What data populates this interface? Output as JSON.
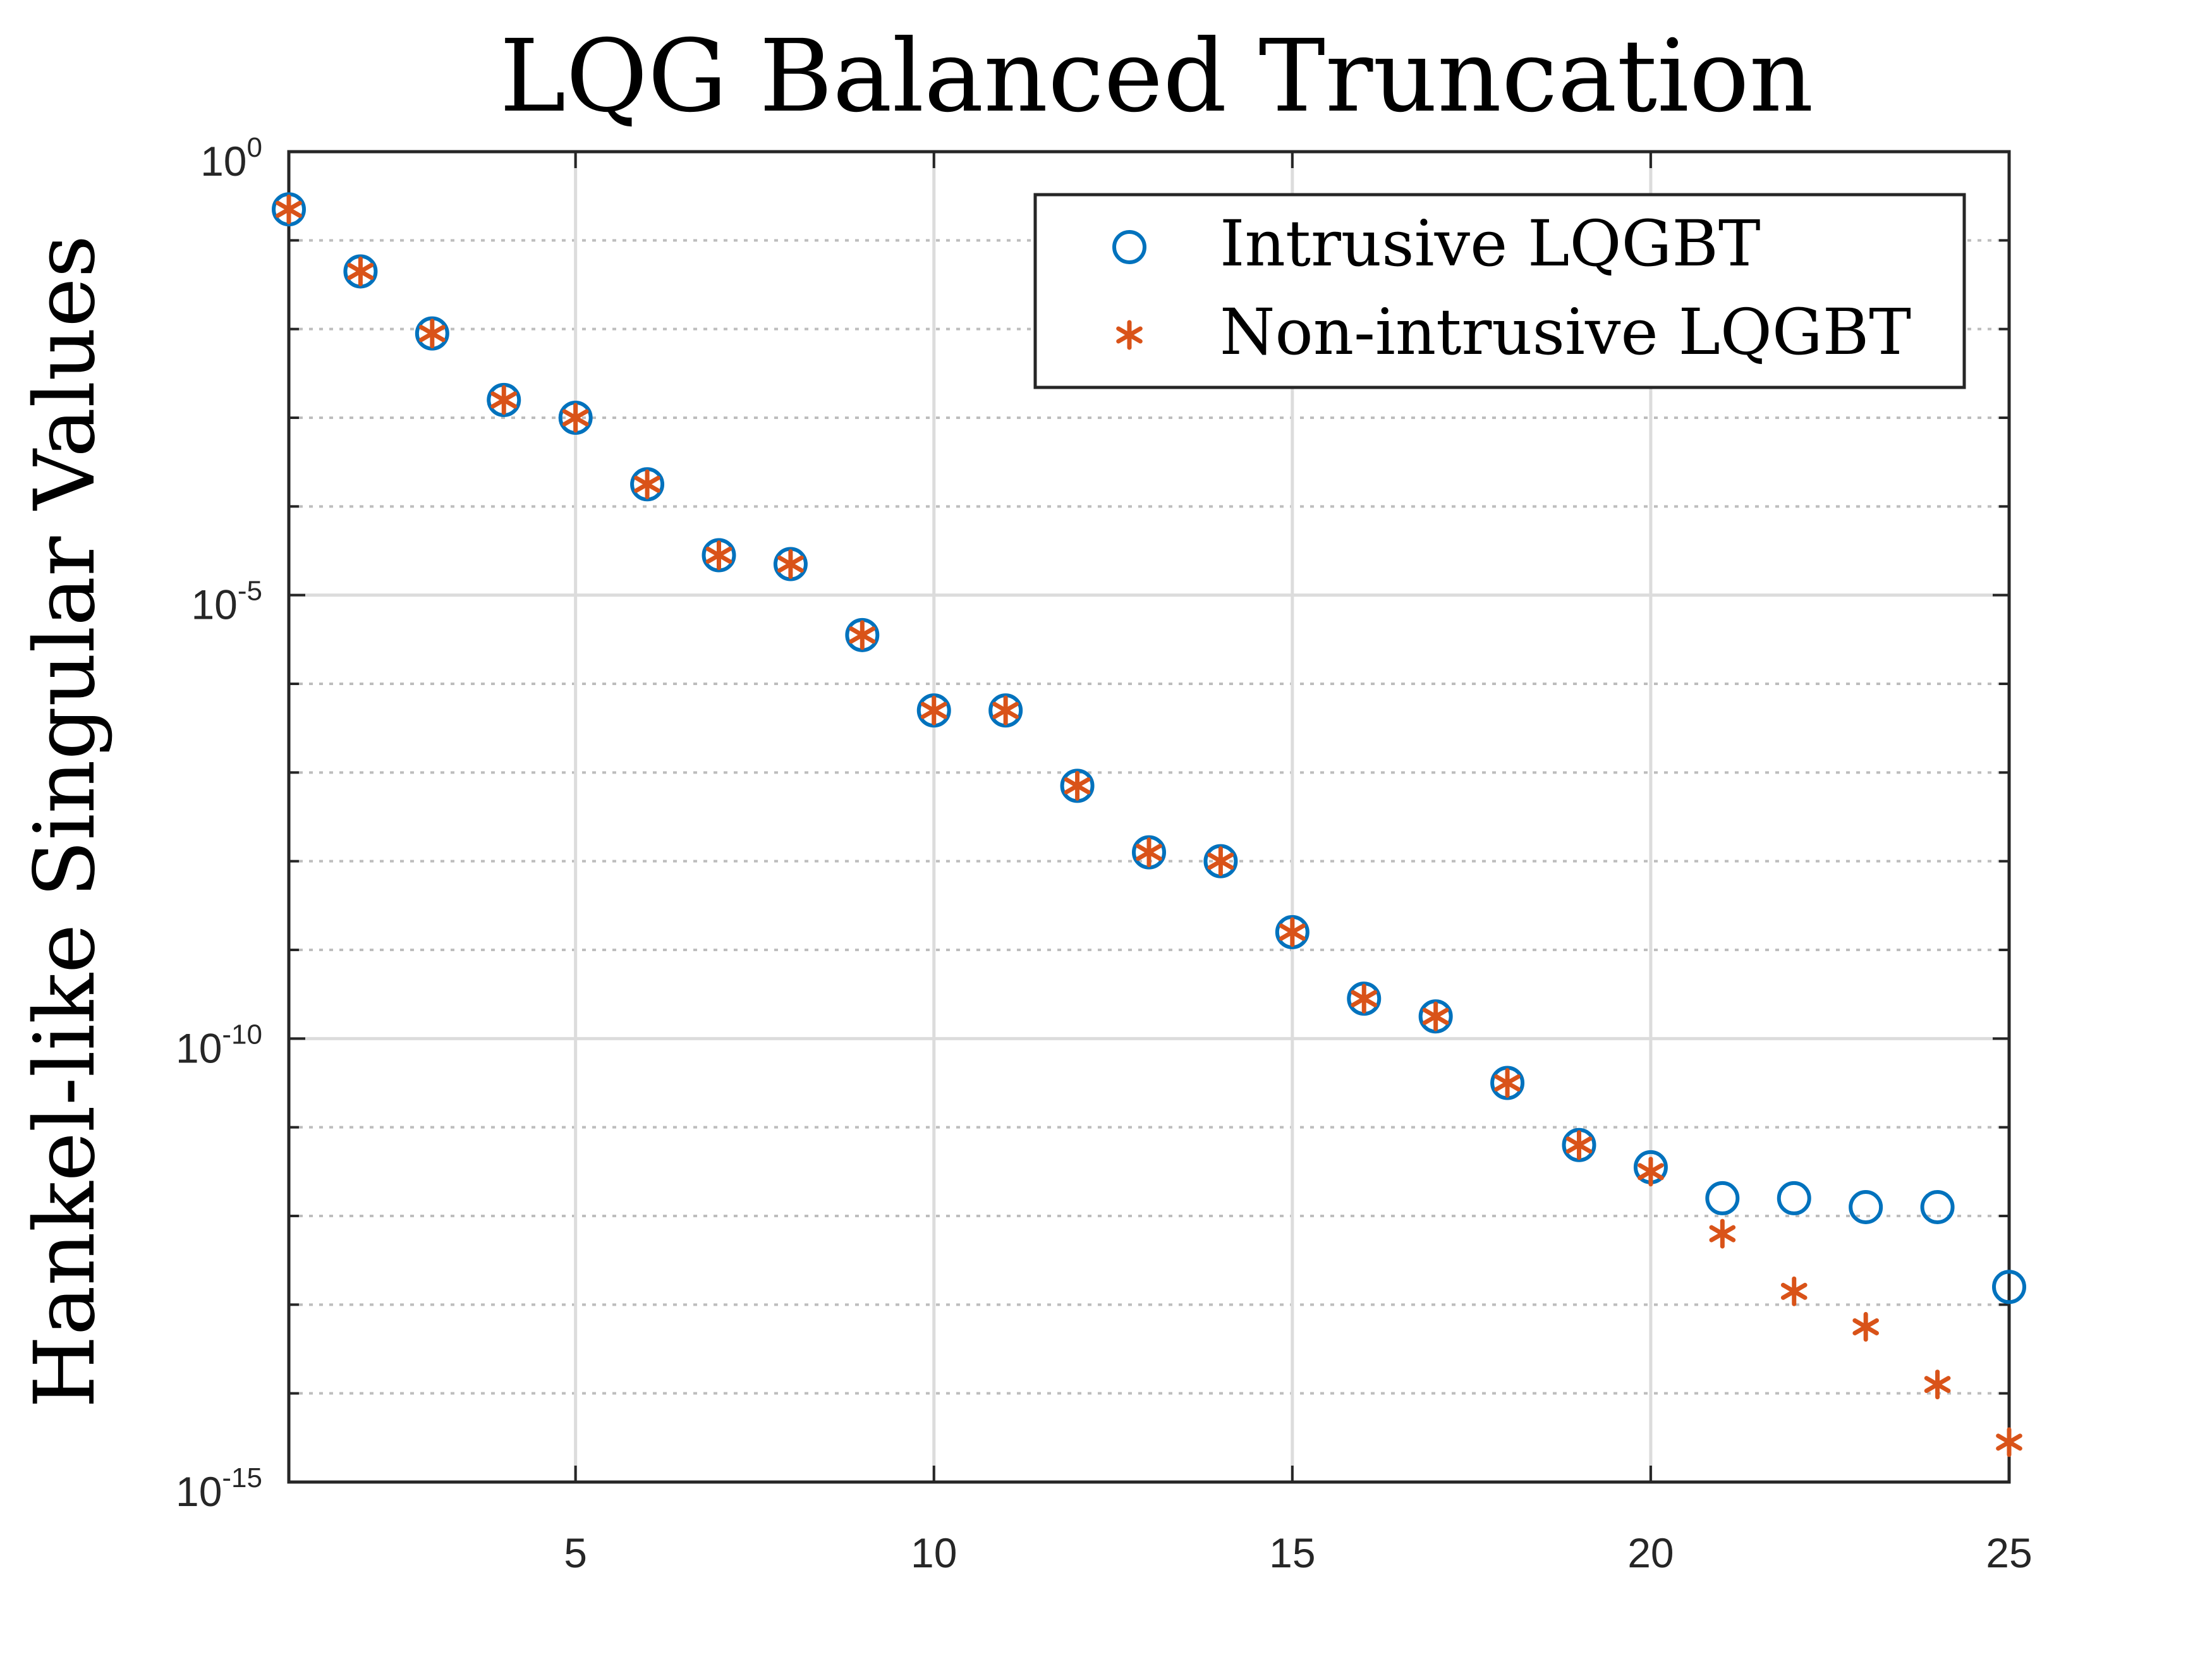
{
  "chart_data": {
    "type": "scatter",
    "title": "LQG Balanced Truncation",
    "xlabel": "",
    "ylabel": "Hankel-like Singular Values",
    "xlim": [
      1,
      25
    ],
    "ylim_log10": [
      -15,
      0
    ],
    "yscale": "log",
    "grid": true,
    "x_ticks": [
      {
        "value": 5,
        "label": "5"
      },
      {
        "value": 10,
        "label": "10"
      },
      {
        "value": 15,
        "label": "15"
      },
      {
        "value": 20,
        "label": "20"
      },
      {
        "value": 25,
        "label": "25"
      }
    ],
    "y_ticks": [
      {
        "log10": 0,
        "base": "10",
        "exp": "0"
      },
      {
        "log10": -5,
        "base": "10",
        "exp": "-5"
      },
      {
        "log10": -10,
        "base": "10",
        "exp": "-10"
      },
      {
        "log10": -15,
        "base": "10",
        "exp": "-15"
      }
    ],
    "legend_position": "top-right",
    "series": [
      {
        "name": "Intrusive LQGBT",
        "marker": "circle",
        "color": "#0072BD",
        "x": [
          1,
          2,
          3,
          4,
          5,
          6,
          7,
          8,
          9,
          10,
          11,
          12,
          13,
          14,
          15,
          16,
          17,
          18,
          19,
          20,
          21,
          22,
          23,
          24,
          25
        ],
        "log10_values": [
          -0.65,
          -1.35,
          -2.05,
          -2.8,
          -3.0,
          -3.75,
          -4.55,
          -4.65,
          -5.45,
          -6.3,
          -6.3,
          -7.15,
          -7.9,
          -8.0,
          -8.8,
          -9.55,
          -9.75,
          -10.5,
          -11.2,
          -11.45,
          -11.8,
          -11.8,
          -11.9,
          -11.9,
          -12.8
        ]
      },
      {
        "name": "Non-intrusive LQGBT",
        "marker": "asterisk",
        "color": "#D95319",
        "x": [
          1,
          2,
          3,
          4,
          5,
          6,
          7,
          8,
          9,
          10,
          11,
          12,
          13,
          14,
          15,
          16,
          17,
          18,
          19,
          20,
          21,
          22,
          23,
          24,
          25
        ],
        "log10_values": [
          -0.65,
          -1.35,
          -2.05,
          -2.8,
          -3.0,
          -3.75,
          -4.55,
          -4.65,
          -5.45,
          -6.3,
          -6.3,
          -7.15,
          -7.9,
          -8.0,
          -8.8,
          -9.55,
          -9.75,
          -10.5,
          -11.2,
          -11.5,
          -12.2,
          -12.85,
          -13.25,
          -13.9,
          -14.55
        ]
      }
    ]
  }
}
